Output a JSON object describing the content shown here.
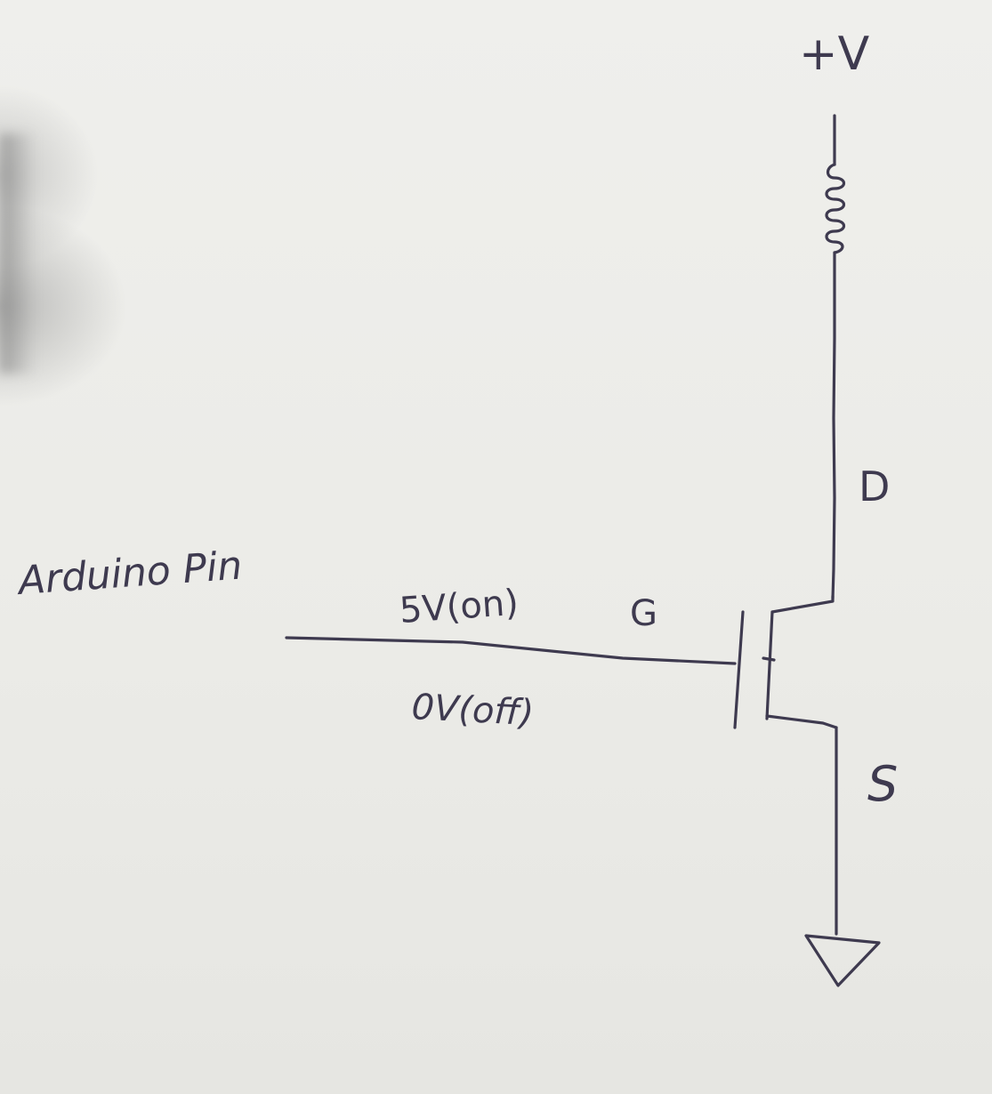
{
  "labels": {
    "supply": "+V",
    "drain": "D",
    "gate": "G",
    "source": "S",
    "input": "Arduino Pin",
    "on_state": "5V(on)",
    "off_state": "0V(off)"
  },
  "colors": {
    "ink": "#3e3a4f",
    "paper": "#ecece8"
  },
  "icons": {
    "load": "coil-icon",
    "ground": "ground-triangle-icon",
    "transistor": "mosfet-icon"
  }
}
